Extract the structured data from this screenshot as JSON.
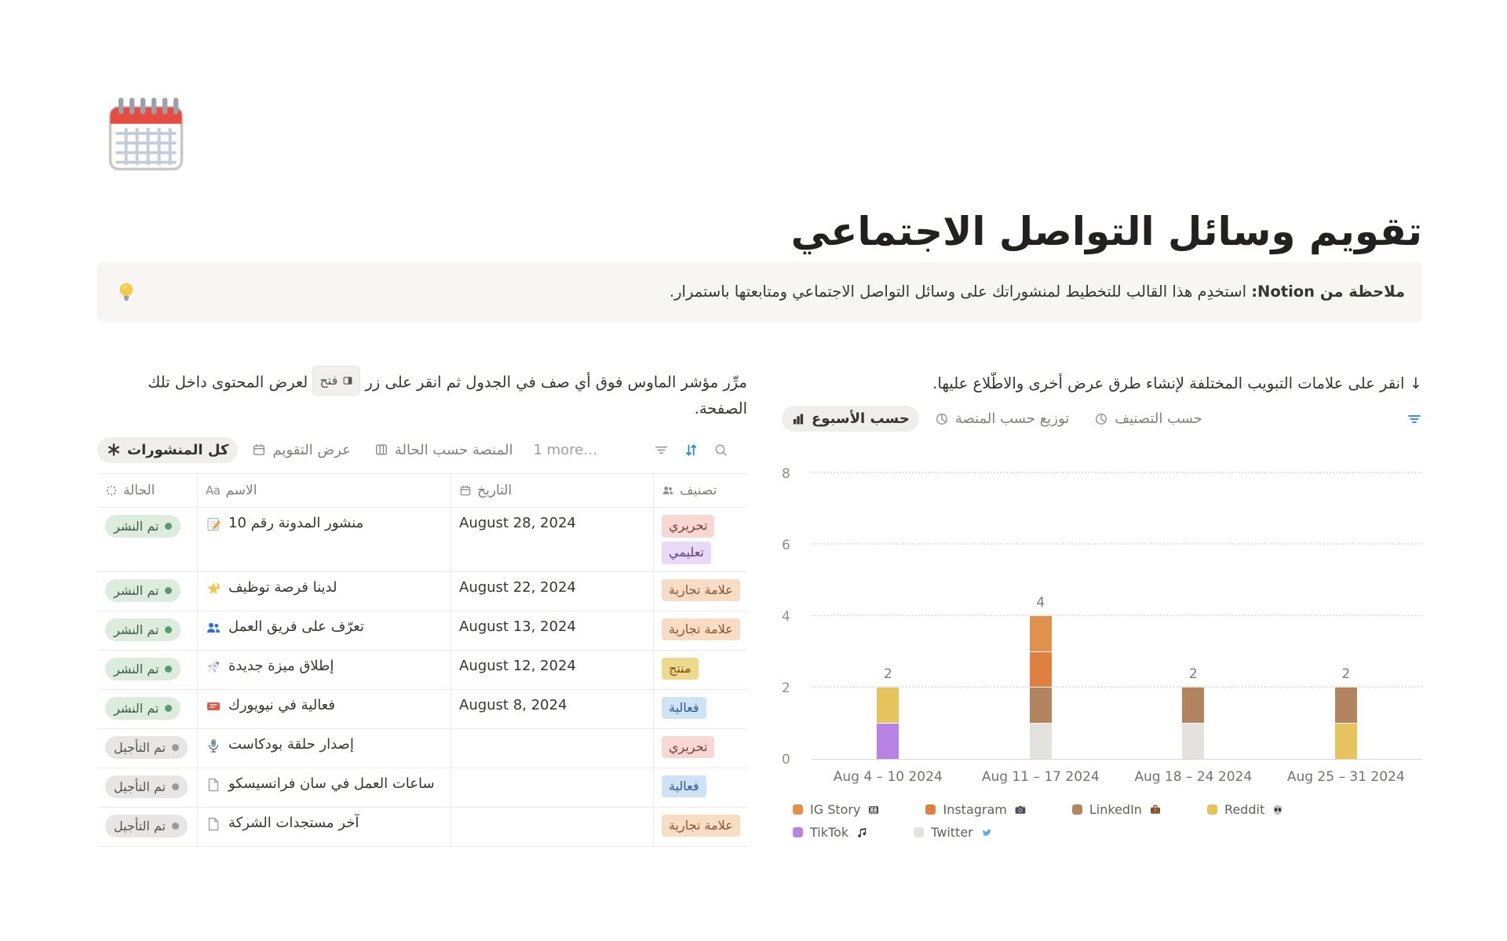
{
  "page": {
    "title": "تقويم وسائل التواصل الاجتماعي",
    "icon": "calendar-emoji-icon"
  },
  "callout": {
    "icon": "bulb-icon",
    "bold": "ملاحظة من Notion:",
    "text": " استخدِم هذا القالب للتخطيط لمنشوراتك على وسائل التواصل الاجتماعي ومتابعتها باستمرار."
  },
  "left_panel": {
    "hint_before": "مرِّر مؤشر الماوس فوق أي صف في الجدول ثم انقر على زر ",
    "open_badge": "فتح",
    "hint_after": " لعرض المحتوى داخل تلك الصفحة.",
    "tabs": [
      {
        "label": "كل المنشورات",
        "icon": "asterisk-icon",
        "active": true
      },
      {
        "label": "عرض التقويم",
        "icon": "calendar-icon",
        "active": false
      },
      {
        "label": "المنصة حسب الحالة",
        "icon": "board-icon",
        "active": false
      }
    ],
    "more_tabs": "1 more…",
    "toolbar_icons": [
      "filter-icon",
      "sort-icon",
      "search-icon"
    ],
    "table": {
      "columns": [
        {
          "label": "الحالة",
          "icon": "status-icon"
        },
        {
          "label": "الاسم",
          "icon": "text-icon"
        },
        {
          "label": "التاريخ",
          "icon": "calendar-icon"
        },
        {
          "label": "تصنيف",
          "icon": "people-icon"
        }
      ],
      "rows": [
        {
          "status": "تم النشر",
          "status_color": "green",
          "icon": "memo-icon",
          "name": "منشور المدونة رقم 10",
          "date": "August 28, 2024",
          "tags": [
            {
              "label": "تحريري",
              "color": "red"
            },
            {
              "label": "تعليمي",
              "color": "purple"
            }
          ]
        },
        {
          "status": "تم النشر",
          "status_color": "green",
          "icon": "dizzy-icon",
          "name": "لدينا فرصة توظيف",
          "date": "August 22, 2024",
          "tags": [
            {
              "label": "علامة تجارية",
              "color": "orange"
            }
          ]
        },
        {
          "status": "تم النشر",
          "status_color": "green",
          "icon": "people-blue-icon",
          "name": "تعرّف على فريق العمل",
          "date": "August 13, 2024",
          "tags": [
            {
              "label": "علامة تجارية",
              "color": "orange"
            }
          ]
        },
        {
          "status": "تم النشر",
          "status_color": "green",
          "icon": "rocket-icon",
          "name": "إطلاق ميزة جديدة",
          "date": "August 12, 2024",
          "tags": [
            {
              "label": "منتج",
              "color": "yellow"
            }
          ]
        },
        {
          "status": "تم النشر",
          "status_color": "green",
          "icon": "ticket-icon",
          "name": "فعالية في نيويورك",
          "date": "August 8, 2024",
          "tags": [
            {
              "label": "فعالية",
              "color": "blue"
            }
          ]
        },
        {
          "status": "تم التأجيل",
          "status_color": "gray",
          "icon": "microphone-icon",
          "name": "إصدار حلقة بودكاست",
          "date": "",
          "tags": [
            {
              "label": "تحريري",
              "color": "red"
            }
          ]
        },
        {
          "status": "تم التأجيل",
          "status_color": "gray",
          "icon": "page-icon",
          "name": "ساعات العمل في سان فرانسيسكو",
          "date": "",
          "tags": [
            {
              "label": "فعالية",
              "color": "blue"
            }
          ]
        },
        {
          "status": "تم التأجيل",
          "status_color": "gray",
          "icon": "page-icon",
          "name": "آخر مستجدات الشركة",
          "date": "",
          "tags": [
            {
              "label": "علامة تجارية",
              "color": "orange"
            }
          ]
        }
      ]
    }
  },
  "right_panel": {
    "hint": "↓ انقر على علامات التبويب المختلفة لإنشاء طرق عرض أخرى والاطّلاع عليها.",
    "tabs": [
      {
        "label": "حسب الأسبوع",
        "icon": "bar-chart-icon",
        "active": true
      },
      {
        "label": "توزيع حسب المنصة",
        "icon": "pie-chart-icon",
        "active": false
      },
      {
        "label": "حسب التصنيف",
        "icon": "pie-chart-icon",
        "active": false
      }
    ],
    "filter_icon_color": "#2383e2",
    "chart_data": {
      "type": "bar",
      "stacked": true,
      "categories": [
        "Aug 4 – 10 2024",
        "Aug 11 – 17 2024",
        "Aug 18 – 24 2024",
        "Aug 25 – 31 2024"
      ],
      "series": [
        {
          "name": "IG Story",
          "icon": "film-icon",
          "color": "#e0914c",
          "values": [
            0,
            1,
            0,
            0
          ]
        },
        {
          "name": "Instagram",
          "icon": "camera-icon",
          "color": "#dd8040",
          "values": [
            0,
            1,
            0,
            0
          ]
        },
        {
          "name": "LinkedIn",
          "icon": "briefcase-icon",
          "color": "#b28460",
          "values": [
            0,
            1,
            1,
            1
          ]
        },
        {
          "name": "Reddit",
          "icon": "alien-icon",
          "color": "#e7c35e",
          "values": [
            1,
            0,
            0,
            1
          ]
        },
        {
          "name": "TikTok",
          "icon": "music-icon",
          "color": "#b983e3",
          "values": [
            1,
            0,
            0,
            0
          ]
        },
        {
          "name": "Twitter",
          "icon": "bird-icon",
          "color": "#e3e2df",
          "values": [
            0,
            1,
            1,
            0
          ]
        }
      ],
      "totals": [
        2,
        4,
        2,
        2
      ],
      "ylim": [
        0,
        8
      ],
      "yticks": [
        0,
        2,
        4,
        6,
        8
      ],
      "grid": "dotted-horizontal",
      "legend_position": "bottom"
    }
  }
}
